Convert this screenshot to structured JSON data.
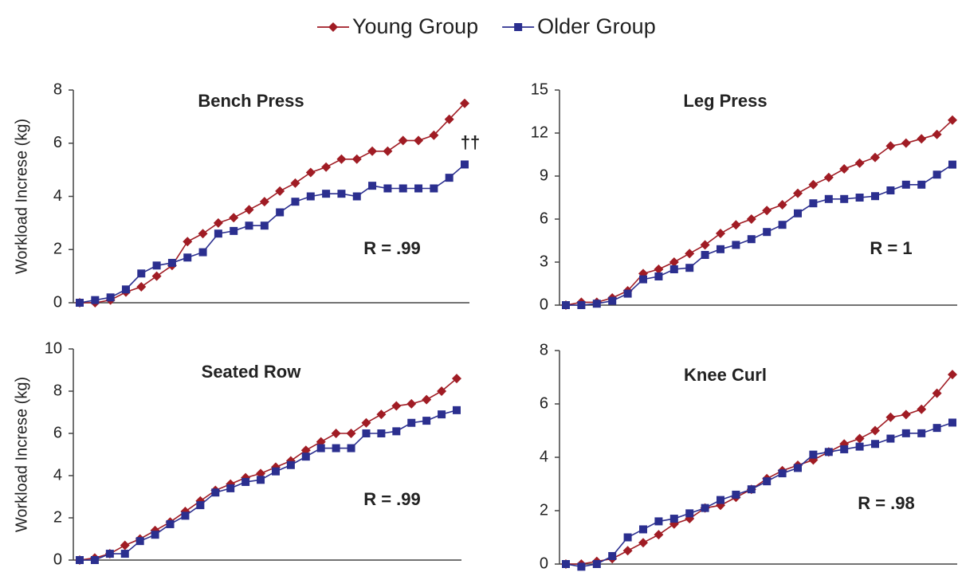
{
  "chart_data": [
    {
      "type": "line",
      "title": "Bench Press",
      "ylabel": "Workload Increse (kg)",
      "categories": [
        null,
        null,
        null,
        null,
        null,
        null,
        null,
        null,
        null,
        null,
        null,
        null,
        null,
        null,
        null,
        null,
        null,
        null,
        null,
        null,
        null,
        null,
        null,
        null,
        null,
        null
      ],
      "ylim": [
        0,
        8
      ],
      "yticks": [
        0,
        2,
        4,
        6,
        8
      ],
      "series": [
        {
          "name": "Young Group",
          "color": "#a01c24",
          "marker": "diamond",
          "values": [
            0,
            0,
            0.1,
            0.4,
            0.6,
            1.0,
            1.4,
            2.3,
            2.6,
            3.0,
            3.2,
            3.5,
            3.8,
            4.2,
            4.5,
            4.9,
            5.1,
            5.4,
            5.4,
            5.7,
            5.7,
            6.1,
            6.1,
            6.3,
            6.9,
            7.5
          ]
        },
        {
          "name": "Older Group",
          "color": "#2b2f8f",
          "marker": "square",
          "values": [
            0,
            0.1,
            0.2,
            0.5,
            1.1,
            1.4,
            1.5,
            1.7,
            1.9,
            2.6,
            2.7,
            2.9,
            2.9,
            3.4,
            3.8,
            4.0,
            4.1,
            4.1,
            4.0,
            4.4,
            4.3,
            4.3,
            4.3,
            4.3,
            4.7,
            5.2
          ]
        }
      ],
      "annotations": [
        {
          "text": "R = .99"
        },
        {
          "text": "††"
        }
      ]
    },
    {
      "type": "line",
      "title": "Leg Press",
      "categories": [
        null,
        null,
        null,
        null,
        null,
        null,
        null,
        null,
        null,
        null,
        null,
        null,
        null,
        null,
        null,
        null,
        null,
        null,
        null,
        null,
        null,
        null,
        null,
        null,
        null,
        null
      ],
      "ylim": [
        0,
        15
      ],
      "yticks": [
        0,
        3,
        6,
        9,
        12,
        15
      ],
      "series": [
        {
          "name": "Young Group",
          "color": "#a01c24",
          "marker": "diamond",
          "values": [
            0,
            0.2,
            0.2,
            0.5,
            1.0,
            2.2,
            2.5,
            3.0,
            3.6,
            4.2,
            5.0,
            5.6,
            6.0,
            6.6,
            7.0,
            7.8,
            8.4,
            8.9,
            9.5,
            9.9,
            10.3,
            11.1,
            11.3,
            11.6,
            11.9,
            12.9
          ]
        },
        {
          "name": "Older Group",
          "color": "#2b2f8f",
          "marker": "square",
          "values": [
            0,
            0,
            0.1,
            0.3,
            0.8,
            1.8,
            2.0,
            2.5,
            2.6,
            3.5,
            3.9,
            4.2,
            4.6,
            5.1,
            5.6,
            6.4,
            7.1,
            7.4,
            7.4,
            7.5,
            7.6,
            8.0,
            8.4,
            8.4,
            9.1,
            9.8
          ]
        }
      ],
      "annotations": [
        {
          "text": "R = 1"
        }
      ]
    },
    {
      "type": "line",
      "title": "Seated Row",
      "ylabel": "Workload Increse (kg)",
      "categories": [
        null,
        null,
        null,
        null,
        null,
        null,
        null,
        null,
        null,
        null,
        null,
        null,
        null,
        null,
        null,
        null,
        null,
        null,
        null,
        null,
        null,
        null,
        null,
        null,
        null,
        null
      ],
      "ylim": [
        0,
        10
      ],
      "yticks": [
        0,
        2,
        4,
        6,
        8,
        10
      ],
      "series": [
        {
          "name": "Young Group",
          "color": "#a01c24",
          "marker": "diamond",
          "values": [
            0,
            0.1,
            0.3,
            0.7,
            1.0,
            1.4,
            1.8,
            2.3,
            2.8,
            3.3,
            3.6,
            3.9,
            4.1,
            4.4,
            4.7,
            5.2,
            5.6,
            6.0,
            6.0,
            6.5,
            6.9,
            7.3,
            7.4,
            7.6,
            8.0,
            8.6
          ]
        },
        {
          "name": "Older Group",
          "color": "#2b2f8f",
          "marker": "square",
          "values": [
            0,
            0,
            0.3,
            0.3,
            0.9,
            1.2,
            1.7,
            2.1,
            2.6,
            3.2,
            3.4,
            3.7,
            3.8,
            4.2,
            4.5,
            4.9,
            5.3,
            5.3,
            5.3,
            6.0,
            6.0,
            6.1,
            6.5,
            6.6,
            6.9,
            7.1
          ]
        }
      ],
      "annotations": [
        {
          "text": "R = .99"
        }
      ]
    },
    {
      "type": "line",
      "title": "Knee Curl",
      "categories": [
        null,
        null,
        null,
        null,
        null,
        null,
        null,
        null,
        null,
        null,
        null,
        null,
        null,
        null,
        null,
        null,
        null,
        null,
        null,
        null,
        null,
        null,
        null,
        null,
        null,
        null
      ],
      "ylim": [
        0,
        8
      ],
      "yticks": [
        0,
        2,
        4,
        6,
        8
      ],
      "series": [
        {
          "name": "Young Group",
          "color": "#a01c24",
          "marker": "diamond",
          "values": [
            0,
            0,
            0.1,
            0.2,
            0.5,
            0.8,
            1.1,
            1.5,
            1.7,
            2.1,
            2.2,
            2.5,
            2.8,
            3.2,
            3.5,
            3.7,
            3.9,
            4.2,
            4.5,
            4.7,
            5.0,
            5.5,
            5.6,
            5.8,
            6.4,
            7.1
          ]
        },
        {
          "name": "Older Group",
          "color": "#2b2f8f",
          "marker": "square",
          "values": [
            0,
            -0.1,
            0,
            0.3,
            1.0,
            1.3,
            1.6,
            1.7,
            1.9,
            2.1,
            2.4,
            2.6,
            2.8,
            3.1,
            3.4,
            3.6,
            4.1,
            4.2,
            4.3,
            4.4,
            4.5,
            4.7,
            4.9,
            4.9,
            5.1,
            5.3
          ]
        }
      ],
      "annotations": [
        {
          "text": "R = .98"
        }
      ]
    }
  ]
}
